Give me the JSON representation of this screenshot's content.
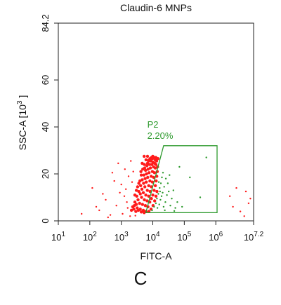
{
  "panel_label": "C",
  "chart_data": {
    "type": "scatter",
    "title": "Claudin-6 MNPs",
    "xlabel": "FITC-A",
    "ylabel_prefix": "SSC-A  [10",
    "ylabel_sup": "3",
    "ylabel_suffix": " ]",
    "x_scale": "log",
    "xlim": [
      10,
      15849000
    ],
    "ylim": [
      0,
      84.2
    ],
    "x_ticks": [
      {
        "value": 10,
        "base": "10",
        "exp": "1"
      },
      {
        "value": 100,
        "base": "10",
        "exp": "2"
      },
      {
        "value": 1000,
        "base": "10",
        "exp": "3"
      },
      {
        "value": 10000,
        "base": "10",
        "exp": "4"
      },
      {
        "value": 100000,
        "base": "10",
        "exp": "5"
      },
      {
        "value": 1000000,
        "base": "10",
        "exp": "6"
      },
      {
        "value": 15849000,
        "base": "10",
        "exp": "7.2"
      }
    ],
    "y_ticks": [
      {
        "value": 0,
        "label": "0"
      },
      {
        "value": 20,
        "label": "20"
      },
      {
        "value": 40,
        "label": "40"
      },
      {
        "value": 60,
        "label": "60"
      },
      {
        "value": 84.2,
        "label": "84.2"
      }
    ],
    "gate": {
      "name": "P2",
      "percent": "2.20%",
      "color": "#2e9a2e",
      "polygon": [
        [
          6000,
          3.5
        ],
        [
          22000,
          32
        ],
        [
          1100000,
          32
        ],
        [
          1100000,
          3.5
        ]
      ]
    },
    "population_colors": {
      "outside_gate": "#ff1a1a",
      "inside_gate": "#2e9a2e"
    },
    "populations": [
      {
        "name": "main",
        "color": "#ff1a1a",
        "points": [
          [
            2300,
            6.0
          ],
          [
            2700,
            8.0
          ],
          [
            3100,
            10.5
          ],
          [
            3600,
            12.5
          ],
          [
            4100,
            15.0
          ],
          [
            4600,
            17.5
          ],
          [
            5200,
            19.5
          ],
          [
            5900,
            21.5
          ],
          [
            6500,
            23.5
          ],
          [
            7300,
            25.5
          ],
          [
            8200,
            26.5
          ],
          [
            9100,
            27.0
          ],
          [
            2500,
            5.0
          ],
          [
            3000,
            7.0
          ],
          [
            3400,
            9.0
          ],
          [
            4000,
            11.5
          ],
          [
            4500,
            13.5
          ],
          [
            5100,
            16.0
          ],
          [
            5700,
            18.0
          ],
          [
            6300,
            20.0
          ],
          [
            7100,
            22.0
          ],
          [
            7900,
            24.0
          ],
          [
            8800,
            25.5
          ],
          [
            9800,
            26.5
          ],
          [
            3200,
            5.5
          ],
          [
            3800,
            7.5
          ],
          [
            4400,
            10.0
          ],
          [
            5000,
            12.0
          ],
          [
            5600,
            14.5
          ],
          [
            6200,
            16.5
          ],
          [
            6900,
            18.5
          ],
          [
            7600,
            20.5
          ],
          [
            8400,
            22.5
          ],
          [
            9300,
            24.0
          ],
          [
            10300,
            25.0
          ],
          [
            11000,
            27.0
          ],
          [
            4000,
            5.0
          ],
          [
            4700,
            7.0
          ],
          [
            5400,
            9.0
          ],
          [
            6000,
            11.0
          ],
          [
            6700,
            13.0
          ],
          [
            7400,
            15.0
          ],
          [
            8100,
            17.0
          ],
          [
            8900,
            19.0
          ],
          [
            9700,
            21.0
          ],
          [
            10500,
            23.0
          ],
          [
            11400,
            24.5
          ],
          [
            12000,
            26.0
          ],
          [
            5000,
            4.5
          ],
          [
            5800,
            6.5
          ],
          [
            6600,
            8.5
          ],
          [
            7400,
            10.5
          ],
          [
            8200,
            12.5
          ],
          [
            9000,
            14.5
          ],
          [
            9800,
            16.5
          ],
          [
            10600,
            18.5
          ],
          [
            11300,
            20.5
          ],
          [
            12000,
            22.5
          ],
          [
            12600,
            24.0
          ],
          [
            13200,
            25.5
          ],
          [
            6000,
            4.0
          ],
          [
            7000,
            6.0
          ],
          [
            8000,
            8.0
          ],
          [
            9000,
            9.5
          ],
          [
            10000,
            11.0
          ],
          [
            11000,
            13.0
          ],
          [
            12000,
            15.0
          ],
          [
            12800,
            17.0
          ],
          [
            13400,
            19.0
          ],
          [
            13900,
            21.0
          ],
          [
            14200,
            23.0
          ],
          [
            14500,
            26.5
          ],
          [
            2100,
            4.5
          ],
          [
            2600,
            6.5
          ],
          [
            2900,
            4.0
          ],
          [
            3500,
            4.5
          ],
          [
            4300,
            3.8
          ],
          [
            5300,
            3.5
          ],
          [
            7500,
            4.0
          ],
          [
            8800,
            5.0
          ],
          [
            10200,
            6.5
          ],
          [
            11500,
            8.5
          ],
          [
            12600,
            10.5
          ],
          [
            13500,
            12.5
          ],
          [
            3300,
            14.5
          ],
          [
            3900,
            17.0
          ],
          [
            4300,
            19.5
          ],
          [
            4800,
            22.0
          ],
          [
            5400,
            24.0
          ],
          [
            6100,
            26.0
          ],
          [
            4600,
            24.5
          ],
          [
            5300,
            27.5
          ],
          [
            6800,
            27.5
          ],
          [
            7700,
            26.0
          ],
          [
            10000,
            27.5
          ],
          [
            12500,
            27.0
          ],
          [
            2700,
            11.0
          ],
          [
            3000,
            13.0
          ],
          [
            3600,
            16.0
          ],
          [
            4200,
            21.0
          ],
          [
            5500,
            22.5
          ],
          [
            6800,
            24.5
          ]
        ]
      },
      {
        "name": "gated",
        "color": "#2e9a2e",
        "points": [
          [
            9500,
            4.5
          ],
          [
            11000,
            6.0
          ],
          [
            12500,
            7.5
          ],
          [
            13500,
            9.5
          ],
          [
            15000,
            11.5
          ],
          [
            16500,
            14.0
          ],
          [
            18000,
            16.0
          ],
          [
            19500,
            18.5
          ],
          [
            21000,
            20.5
          ],
          [
            14000,
            5.5
          ],
          [
            16000,
            7.0
          ],
          [
            17500,
            9.0
          ],
          [
            19000,
            10.5
          ],
          [
            20500,
            12.0
          ],
          [
            23000,
            14.5
          ],
          [
            25000,
            8.0
          ],
          [
            28000,
            11.0
          ],
          [
            22000,
            6.0
          ],
          [
            30000,
            16.0
          ],
          [
            34000,
            19.5
          ],
          [
            24000,
            4.5
          ],
          [
            36000,
            6.5
          ],
          [
            40000,
            9.5
          ],
          [
            45000,
            13.0
          ],
          [
            52000,
            5.5
          ],
          [
            60000,
            8.0
          ],
          [
            70000,
            23.0
          ],
          [
            150000,
            18.5
          ],
          [
            320000,
            10.0
          ],
          [
            500000,
            27.0
          ],
          [
            15500,
            16.5
          ],
          [
            17000,
            12.5
          ],
          [
            26000,
            18.0
          ],
          [
            32000,
            12.5
          ],
          [
            48000,
            4.2
          ],
          [
            85000,
            6.0
          ]
        ]
      },
      {
        "name": "scattered",
        "color": "#ff1a1a",
        "points": [
          [
            55,
            3.0
          ],
          [
            120,
            14.0
          ],
          [
            200,
            4.5
          ],
          [
            320,
            9.0
          ],
          [
            450,
            2.5
          ],
          [
            600,
            17.0
          ],
          [
            900,
            12.0
          ],
          [
            1100,
            3.0
          ],
          [
            1300,
            22.0
          ],
          [
            1500,
            8.0
          ],
          [
            1700,
            19.0
          ],
          [
            1900,
            2.0
          ],
          [
            700,
            6.5
          ],
          [
            260,
            11.5
          ],
          [
            380,
            1.5
          ],
          [
            800,
            24.5
          ],
          [
            1000,
            15.5
          ],
          [
            160,
            6.0
          ],
          [
            1250,
            10.5
          ],
          [
            1600,
            5.5
          ],
          [
            2000,
            25.5
          ],
          [
            2200,
            16.5
          ],
          [
            2400,
            21.0
          ],
          [
            2800,
            2.2
          ],
          [
            1400,
            13.5
          ],
          [
            520,
            20.5
          ],
          [
            3500000,
            6.0
          ],
          [
            4500000,
            14.0
          ],
          [
            6000000,
            4.0
          ],
          [
            9000000,
            12.5
          ],
          [
            11000000,
            7.5
          ],
          [
            12500000,
            9.5
          ],
          [
            8000000,
            2.0
          ],
          [
            2800000,
            10.5
          ]
        ]
      }
    ]
  }
}
